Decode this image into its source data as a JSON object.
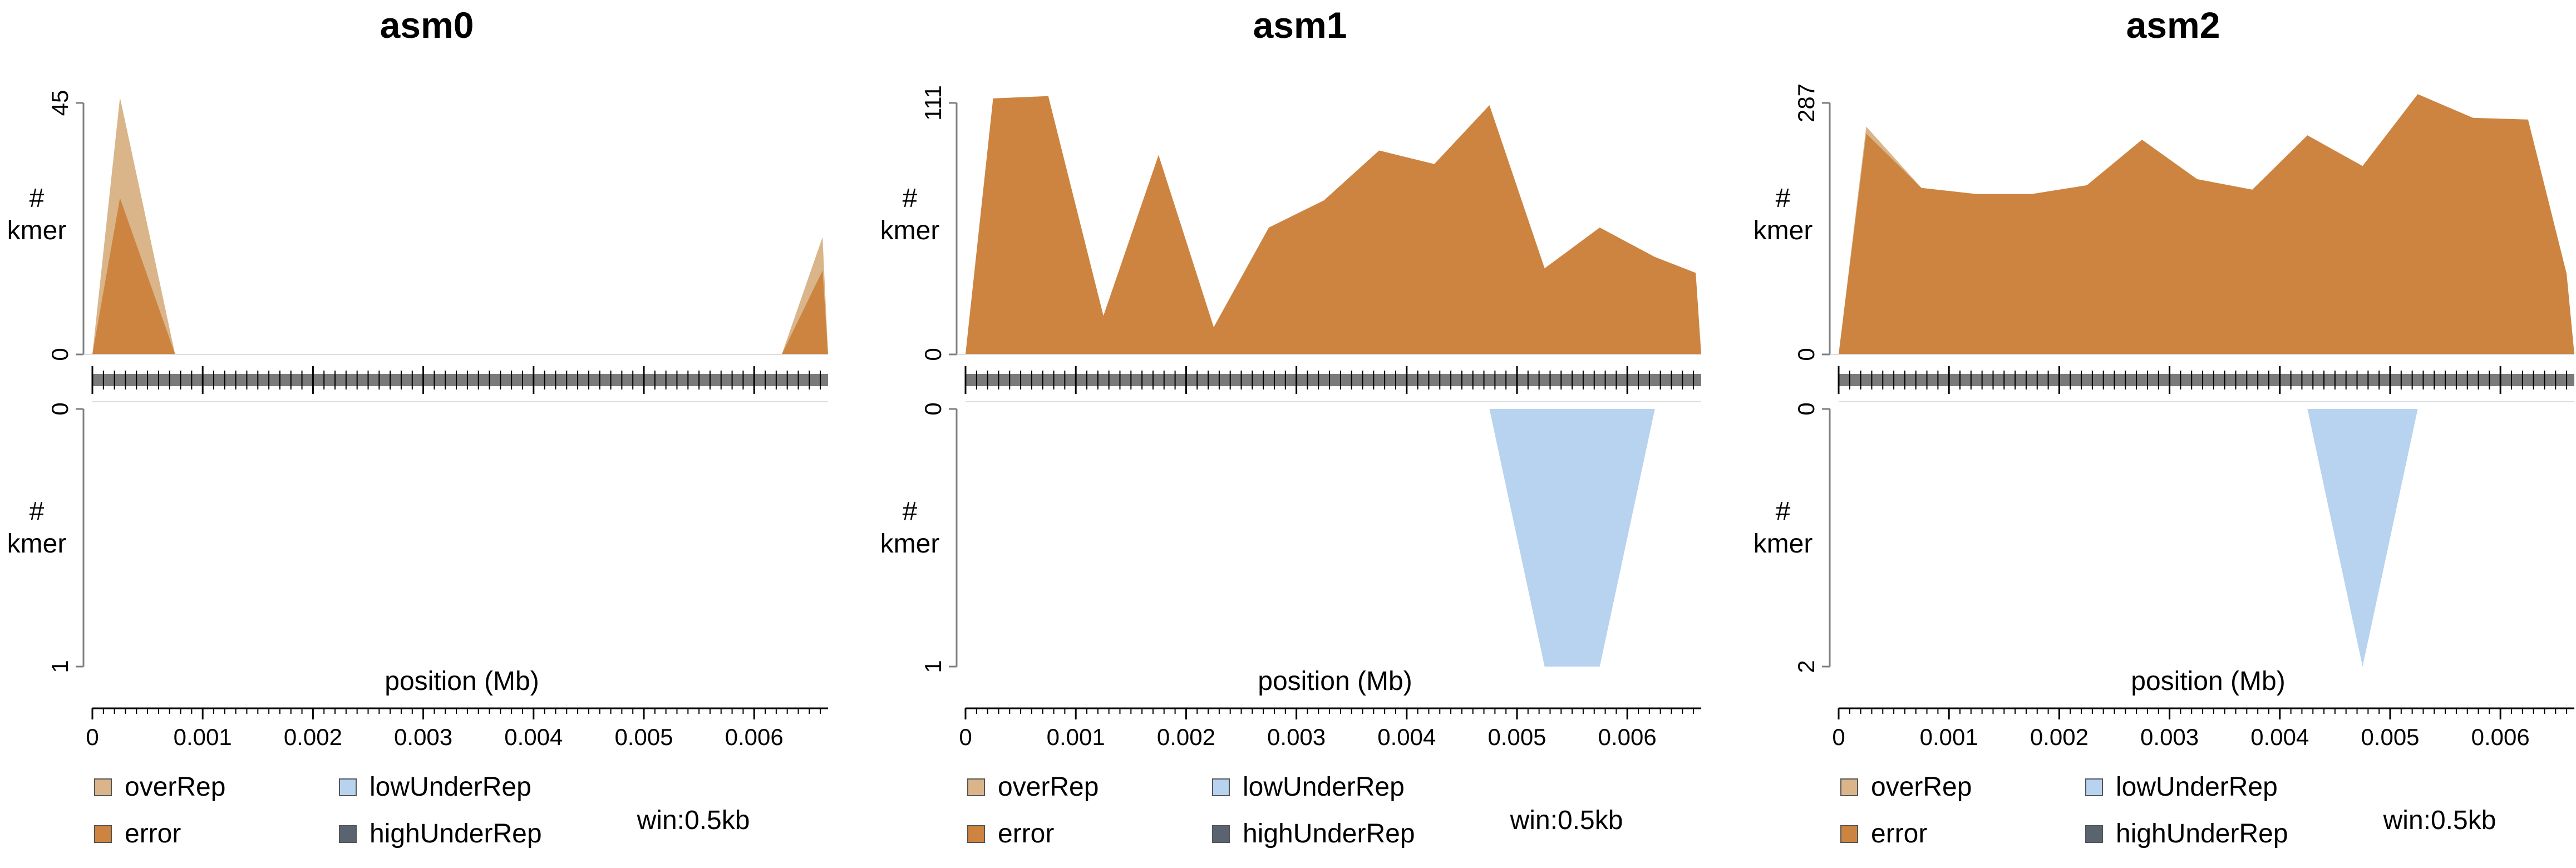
{
  "legend": {
    "items": [
      {
        "label": "overRep",
        "color": "#D9B589"
      },
      {
        "label": "lowUnderRep",
        "color": "#B8D3EF"
      },
      {
        "label": "error",
        "color": "#CC8440"
      },
      {
        "label": "highUnderRep",
        "color": "#5A6470"
      }
    ],
    "window": "win:0.5kb"
  },
  "chart_data": [
    {
      "type": "area",
      "title": "asm0",
      "xlabel": "position (Mb)",
      "ylabel_top": "# kmer",
      "ylabel_bottom": "# kmer",
      "x_ticks": [
        "0",
        "0.001",
        "0.002",
        "0.003",
        "0.004",
        "0.005",
        "0.006"
      ],
      "x_range": [
        0,
        0.00667
      ],
      "upper": {
        "ylim": [
          0,
          45
        ],
        "y_ticks": [
          "0",
          "45"
        ],
        "series": [
          {
            "name": "overRep",
            "color": "#D9B589",
            "x": [
              0,
              0.00025,
              0.00075,
              0.00625,
              0.00662,
              0.00667
            ],
            "y": [
              0,
              46,
              0,
              0,
              21,
              0
            ]
          },
          {
            "name": "error",
            "color": "#CC8440",
            "x": [
              0,
              0.00025,
              0.00075,
              0.00625,
              0.00662,
              0.00667
            ],
            "y": [
              0,
              28,
              0,
              0,
              15,
              0
            ]
          }
        ]
      },
      "lower": {
        "ylim": [
          0,
          1
        ],
        "y_ticks": [
          "0",
          "1"
        ],
        "series": []
      }
    },
    {
      "type": "area",
      "title": "asm1",
      "xlabel": "position (Mb)",
      "ylabel_top": "# kmer",
      "ylabel_bottom": "# kmer",
      "x_ticks": [
        "0",
        "0.001",
        "0.002",
        "0.003",
        "0.004",
        "0.005",
        "0.006"
      ],
      "x_range": [
        0,
        0.00667
      ],
      "upper": {
        "ylim": [
          0,
          111
        ],
        "y_ticks": [
          "0",
          "111"
        ],
        "series": [
          {
            "name": "overRep",
            "color": "#D9B589",
            "x": [
              0,
              0.00025,
              0.00075,
              0.00125,
              0.00175,
              0.00225,
              0.00275,
              0.00325,
              0.00375,
              0.00425,
              0.00475,
              0.00525,
              0.00575,
              0.00625,
              0.00662,
              0.00667
            ],
            "y": [
              0,
              113,
              114,
              17,
              88,
              12,
              56,
              68,
              90,
              84,
              110,
              38,
              56,
              43,
              36,
              0
            ]
          },
          {
            "name": "error",
            "color": "#CC8440",
            "x": [
              0,
              0.00025,
              0.00075,
              0.00125,
              0.00175,
              0.00225,
              0.00275,
              0.00325,
              0.00375,
              0.00425,
              0.00475,
              0.00525,
              0.00575,
              0.00625,
              0.00662,
              0.00667
            ],
            "y": [
              0,
              113,
              114,
              17,
              88,
              12,
              56,
              68,
              90,
              84,
              110,
              38,
              56,
              43,
              36,
              0
            ]
          }
        ]
      },
      "lower": {
        "ylim": [
          0,
          1
        ],
        "y_ticks": [
          "0",
          "1"
        ],
        "series": [
          {
            "name": "lowUnderRep",
            "color": "#B8D3EF",
            "x": [
              0.00475,
              0.00525,
              0.00575,
              0.00625
            ],
            "y": [
              0,
              1,
              1,
              0
            ]
          }
        ]
      }
    },
    {
      "type": "area",
      "title": "asm2",
      "xlabel": "position (Mb)",
      "ylabel_top": "# kmer",
      "ylabel_bottom": "# kmer",
      "x_ticks": [
        "0",
        "0.001",
        "0.002",
        "0.003",
        "0.004",
        "0.005",
        "0.006"
      ],
      "x_range": [
        0,
        0.00667
      ],
      "upper": {
        "ylim": [
          0,
          287
        ],
        "y_ticks": [
          "0",
          "287"
        ],
        "series": [
          {
            "name": "overRep",
            "color": "#D9B589",
            "x": [
              0,
              0.00025,
              0.00075,
              0.00125,
              0.00175,
              0.00225,
              0.00275,
              0.00325,
              0.00375,
              0.00425,
              0.00475,
              0.00525,
              0.00575,
              0.00625,
              0.0066,
              0.00667
            ],
            "y": [
              0,
              260,
              190,
              183,
              183,
              193,
              245,
              200,
              188,
              250,
              215,
              297,
              270,
              268,
              92,
              0
            ]
          },
          {
            "name": "error",
            "color": "#CC8440",
            "x": [
              0,
              0.00025,
              0.00075,
              0.00125,
              0.00175,
              0.00225,
              0.00275,
              0.00325,
              0.00375,
              0.00425,
              0.00475,
              0.00525,
              0.00575,
              0.00625,
              0.0066,
              0.00667
            ],
            "y": [
              0,
              252,
              190,
              183,
              183,
              193,
              245,
              200,
              188,
              250,
              215,
              297,
              270,
              268,
              92,
              0
            ]
          }
        ]
      },
      "lower": {
        "ylim": [
          0,
          2
        ],
        "y_ticks": [
          "0",
          "2"
        ],
        "series": [
          {
            "name": "lowUnderRep",
            "color": "#B8D3EF",
            "x": [
              0.00425,
              0.00475,
              0.00525
            ],
            "y": [
              0,
              2,
              0
            ]
          }
        ]
      }
    }
  ]
}
